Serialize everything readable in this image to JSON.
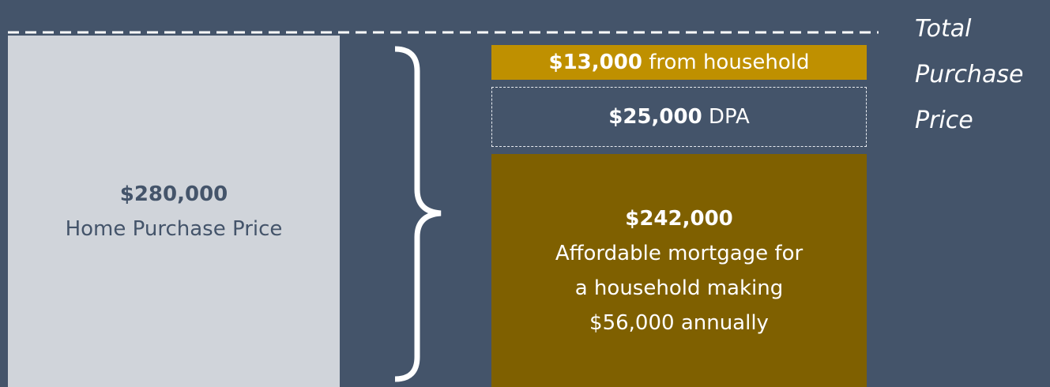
{
  "left": {
    "amount": "$280,000",
    "label": "Home Purchase Price"
  },
  "blocks": [
    {
      "amount": "$13,000",
      "label": "from household"
    },
    {
      "amount": "$25,000",
      "label": "DPA"
    },
    {
      "amount": "$242,000",
      "label_lines": [
        "Affordable mortgage for",
        "a household making",
        "$56,000 annually"
      ]
    }
  ],
  "side_label": [
    "Total",
    "Purchase",
    "Price"
  ]
}
